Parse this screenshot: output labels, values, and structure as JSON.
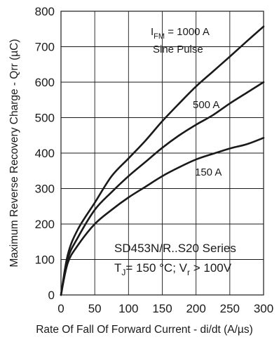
{
  "chart_data": {
    "type": "line",
    "xlabel": "Rate Of Fall Of Forward Current - di/dt (A/µs)",
    "ylabel": "Maximum Reverse Recovery Charge - Qrr (µC)",
    "xlim": [
      0,
      300
    ],
    "ylim": [
      0,
      800
    ],
    "x_ticks": [
      "0",
      "50",
      "100",
      "150",
      "200",
      "250",
      "300"
    ],
    "y_ticks": [
      "0",
      "100",
      "200",
      "300",
      "400",
      "500",
      "600",
      "700",
      "800"
    ],
    "grid": true,
    "x": [
      0,
      10,
      25,
      50,
      75,
      100,
      125,
      150,
      175,
      200,
      225,
      250,
      275,
      300
    ],
    "series": [
      {
        "name": "I_FM = 1000 A",
        "label_main": "I",
        "label_sub": "FM",
        "label_rest": " = 1000 A",
        "values": [
          0,
          113,
          185,
          260,
          335,
          385,
          435,
          490,
          540,
          588,
          630,
          672,
          715,
          757
        ]
      },
      {
        "name": "500 A",
        "values": [
          0,
          102,
          162,
          240,
          290,
          335,
          375,
          415,
          450,
          480,
          507,
          540,
          570,
          600
        ]
      },
      {
        "name": "150 A",
        "values": [
          0,
          90,
          140,
          200,
          240,
          275,
          305,
          335,
          360,
          382,
          398,
          413,
          425,
          443
        ]
      }
    ],
    "annotations": {
      "pulse": "Sine Pulse",
      "device": "SD453N/R..S20 Series",
      "conditions_tj": "T",
      "conditions_tj_sub": "J",
      "conditions_rest": "= 150 °C; V",
      "conditions_vr_sub": "r",
      "conditions_end": " > 100V"
    }
  }
}
